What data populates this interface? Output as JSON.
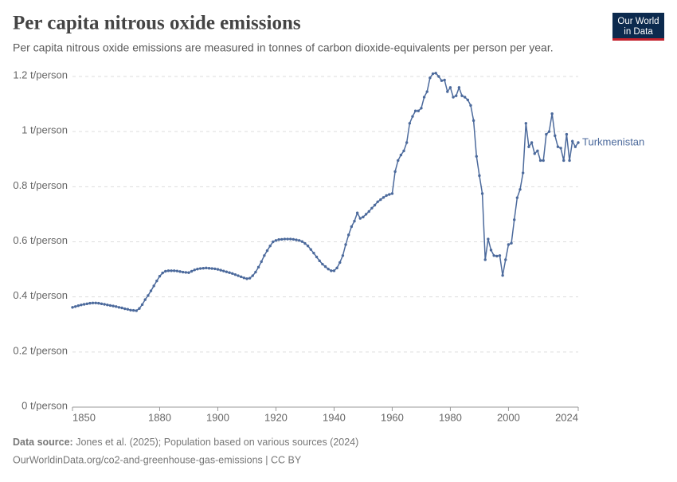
{
  "chart_data": {
    "type": "line",
    "title": "Per capita nitrous oxide emissions",
    "subtitle": "Per capita nitrous oxide emissions are measured in tonnes of carbon dioxide-equivalents per person per year.",
    "source_label": "Data source:",
    "source": "Jones et al. (2025); Population based on various sources (2024)",
    "footer": "OurWorldinData.org/co2-and-greenhouse-gas-emissions | CC BY",
    "logo": [
      "Our World",
      "in Data"
    ],
    "xlim": [
      1850,
      2024
    ],
    "xticks": [
      1850,
      1880,
      1900,
      1920,
      1940,
      1960,
      1980,
      2000,
      2024
    ],
    "ylim": [
      0,
      1.2
    ],
    "yticks": [
      {
        "value": 0,
        "label": "0 t/person"
      },
      {
        "value": 0.2,
        "label": "0.2 t/person"
      },
      {
        "value": 0.4,
        "label": "0.4 t/person"
      },
      {
        "value": 0.6,
        "label": "0.6 t/person"
      },
      {
        "value": 0.8,
        "label": "0.8 t/person"
      },
      {
        "value": 1,
        "label": "1 t/person"
      },
      {
        "value": 1.2,
        "label": "1.2 t/person"
      }
    ],
    "grid": true,
    "x": [
      1850,
      1851,
      1852,
      1853,
      1854,
      1855,
      1856,
      1857,
      1858,
      1859,
      1860,
      1861,
      1862,
      1863,
      1864,
      1865,
      1866,
      1867,
      1868,
      1869,
      1870,
      1871,
      1872,
      1873,
      1874,
      1875,
      1876,
      1877,
      1878,
      1879,
      1880,
      1881,
      1882,
      1883,
      1884,
      1885,
      1886,
      1887,
      1888,
      1889,
      1890,
      1891,
      1892,
      1893,
      1894,
      1895,
      1896,
      1897,
      1898,
      1899,
      1900,
      1901,
      1902,
      1903,
      1904,
      1905,
      1906,
      1907,
      1908,
      1909,
      1910,
      1911,
      1912,
      1913,
      1914,
      1915,
      1916,
      1917,
      1918,
      1919,
      1920,
      1921,
      1922,
      1923,
      1924,
      1925,
      1926,
      1927,
      1928,
      1929,
      1930,
      1931,
      1932,
      1933,
      1934,
      1935,
      1936,
      1937,
      1938,
      1939,
      1940,
      1941,
      1942,
      1943,
      1944,
      1945,
      1946,
      1947,
      1948,
      1949,
      1950,
      1951,
      1952,
      1953,
      1954,
      1955,
      1956,
      1957,
      1958,
      1959,
      1960,
      1961,
      1962,
      1963,
      1964,
      1965,
      1966,
      1967,
      1968,
      1969,
      1970,
      1971,
      1972,
      1973,
      1974,
      1975,
      1976,
      1977,
      1978,
      1979,
      1980,
      1981,
      1982,
      1983,
      1984,
      1985,
      1986,
      1987,
      1988,
      1989,
      1990,
      1991,
      1992,
      1993,
      1994,
      1995,
      1996,
      1997,
      1998,
      1999,
      2000,
      2001,
      2002,
      2003,
      2004,
      2005,
      2006,
      2007,
      2008,
      2009,
      2010,
      2011,
      2012,
      2013,
      2014,
      2015,
      2016,
      2017,
      2018,
      2019,
      2020,
      2021,
      2022,
      2023,
      2024
    ],
    "series": [
      {
        "name": "Turkmenistan",
        "color": "#4c6a9c",
        "values": [
          0.362,
          0.365,
          0.368,
          0.371,
          0.373,
          0.375,
          0.377,
          0.378,
          0.378,
          0.377,
          0.375,
          0.373,
          0.371,
          0.369,
          0.367,
          0.365,
          0.362,
          0.36,
          0.357,
          0.355,
          0.352,
          0.351,
          0.35,
          0.358,
          0.372,
          0.39,
          0.405,
          0.422,
          0.44,
          0.458,
          0.475,
          0.487,
          0.493,
          0.495,
          0.495,
          0.495,
          0.494,
          0.492,
          0.49,
          0.489,
          0.488,
          0.493,
          0.498,
          0.501,
          0.503,
          0.504,
          0.505,
          0.504,
          0.503,
          0.502,
          0.5,
          0.497,
          0.494,
          0.491,
          0.488,
          0.485,
          0.481,
          0.477,
          0.473,
          0.469,
          0.466,
          0.468,
          0.477,
          0.49,
          0.508,
          0.528,
          0.55,
          0.568,
          0.585,
          0.6,
          0.605,
          0.608,
          0.609,
          0.61,
          0.61,
          0.61,
          0.609,
          0.607,
          0.605,
          0.601,
          0.594,
          0.585,
          0.572,
          0.559,
          0.545,
          0.531,
          0.519,
          0.51,
          0.501,
          0.495,
          0.495,
          0.505,
          0.525,
          0.55,
          0.59,
          0.625,
          0.655,
          0.675,
          0.705,
          0.685,
          0.69,
          0.7,
          0.71,
          0.722,
          0.733,
          0.745,
          0.753,
          0.761,
          0.768,
          0.772,
          0.775,
          0.855,
          0.895,
          0.915,
          0.93,
          0.96,
          1.03,
          1.055,
          1.075,
          1.075,
          1.085,
          1.125,
          1.145,
          1.195,
          1.21,
          1.212,
          1.2,
          1.185,
          1.187,
          1.145,
          1.16,
          1.125,
          1.13,
          1.16,
          1.13,
          1.125,
          1.115,
          1.095,
          1.04,
          0.91,
          0.84,
          0.775,
          0.535,
          0.61,
          0.57,
          0.55,
          0.548,
          0.55,
          0.478,
          0.535,
          0.59,
          0.595,
          0.68,
          0.76,
          0.79,
          0.85,
          1.03,
          0.945,
          0.96,
          0.92,
          0.93,
          0.895,
          0.895,
          0.99,
          1.0,
          1.065,
          0.985,
          0.945,
          0.94,
          0.895,
          0.99,
          0.895,
          0.965,
          0.945,
          0.96
        ]
      }
    ]
  }
}
